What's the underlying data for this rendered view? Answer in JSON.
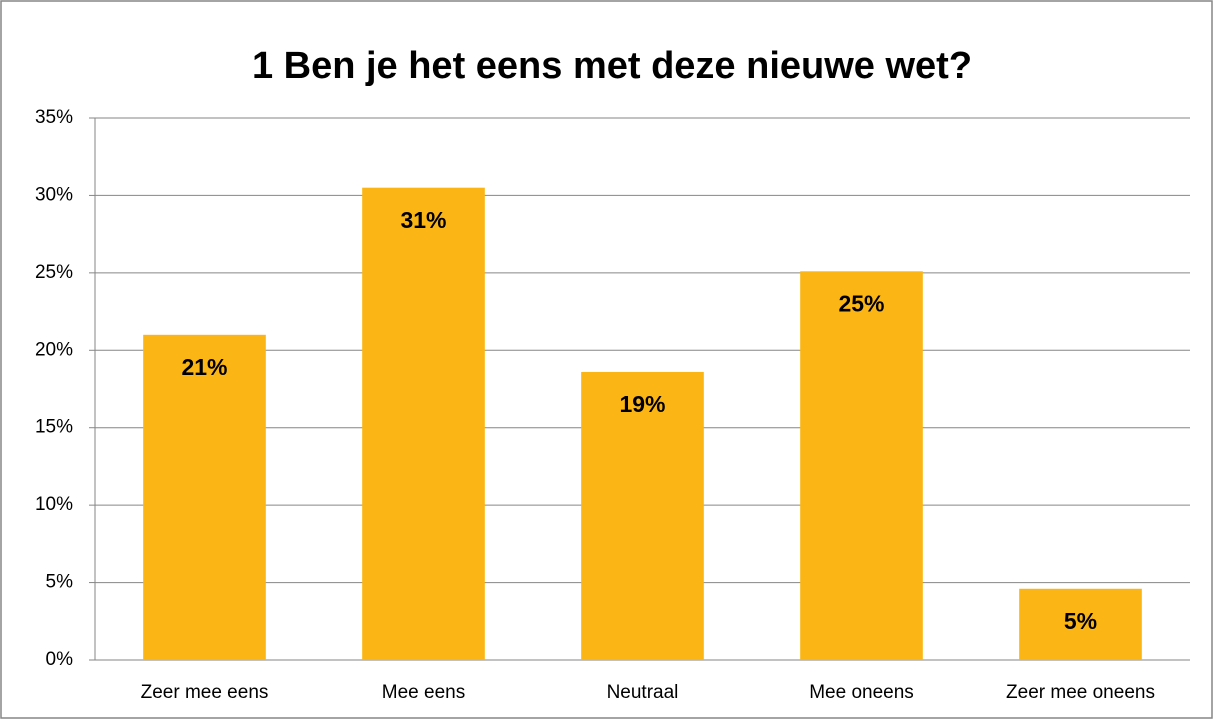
{
  "chart_data": {
    "type": "bar",
    "title": "1 Ben je het eens met deze nieuwe wet?",
    "categories": [
      "Zeer mee eens",
      "Mee eens",
      "Neutraal",
      "Mee oneens",
      "Zeer mee oneens"
    ],
    "values": [
      21.0,
      30.5,
      18.6,
      25.1,
      4.6
    ],
    "value_labels": [
      "21%",
      "31%",
      "19%",
      "25%",
      "5%"
    ],
    "color": "#fbb615",
    "ylim": [
      0,
      35
    ],
    "yticks": [
      {
        "value": 0,
        "label": "0%"
      },
      {
        "value": 5,
        "label": "5%"
      },
      {
        "value": 10,
        "label": "10%"
      },
      {
        "value": 15,
        "label": "15%"
      },
      {
        "value": 20,
        "label": "20%"
      },
      {
        "value": 25,
        "label": "25%"
      },
      {
        "value": 30,
        "label": "30%"
      },
      {
        "value": 35,
        "label": "35%"
      }
    ],
    "grid": true
  }
}
